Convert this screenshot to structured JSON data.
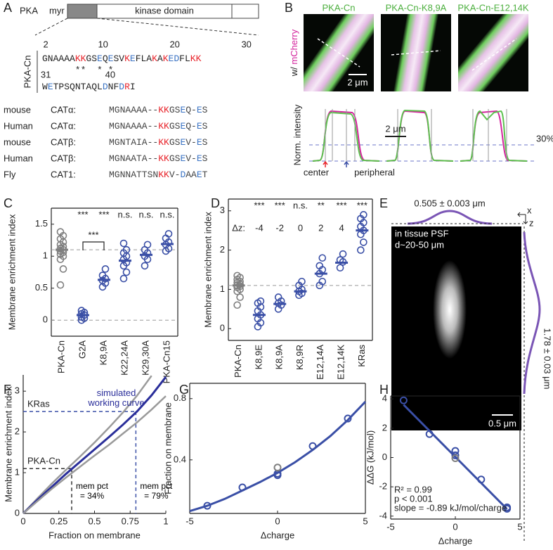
{
  "panel_a": {
    "label": "A",
    "protein": "PKA",
    "anchor": "myr",
    "domain": "kinase domain",
    "construct": "PKA-Cn",
    "sequence": [
      {
        "ticks": [
          2,
          10,
          20,
          30
        ],
        "marks": "      **  * *",
        "segments": [
          {
            "text": "GNAAAA",
            "color": "#222"
          },
          {
            "text": "KK",
            "color": "#e8232a"
          },
          {
            "text": "GS",
            "color": "#222"
          },
          {
            "text": "E",
            "color": "#3c74c4"
          },
          {
            "text": "Q",
            "color": "#222"
          },
          {
            "text": "E",
            "color": "#3c74c4"
          },
          {
            "text": "SV",
            "color": "#222"
          },
          {
            "text": "K",
            "color": "#e8232a"
          },
          {
            "text": "E",
            "color": "#3c74c4"
          },
          {
            "text": "FLA",
            "color": "#222"
          },
          {
            "text": "K",
            "color": "#e8232a"
          },
          {
            "text": "A",
            "color": "#222"
          },
          {
            "text": "K",
            "color": "#e8232a"
          },
          {
            "text": "ED",
            "color": "#3c74c4"
          },
          {
            "text": "FL",
            "color": "#222"
          },
          {
            "text": "KK",
            "color": "#e8232a"
          }
        ]
      },
      {
        "ticks": [
          31,
          40
        ],
        "segments": [
          {
            "text": "W",
            "color": "#222"
          },
          {
            "text": "E",
            "color": "#3c74c4"
          },
          {
            "text": "TPSQNTAQL",
            "color": "#222"
          },
          {
            "text": "D",
            "color": "#3c74c4"
          },
          {
            "text": "NF",
            "color": "#222"
          },
          {
            "text": "D",
            "color": "#3c74c4"
          },
          {
            "text": "R",
            "color": "#e8232a"
          },
          {
            "text": "I",
            "color": "#222"
          }
        ]
      }
    ],
    "alignment": [
      {
        "species": "mouse",
        "protein": "CATα:",
        "segments": [
          {
            "text": "MGNAAAA--",
            "color": "#444"
          },
          {
            "text": "KK",
            "color": "#e8232a"
          },
          {
            "text": "GS",
            "color": "#444"
          },
          {
            "text": "E",
            "color": "#3c74c4"
          },
          {
            "text": "Q-",
            "color": "#444"
          },
          {
            "text": "E",
            "color": "#3c74c4"
          },
          {
            "text": "S",
            "color": "#444"
          }
        ]
      },
      {
        "species": "Human",
        "protein": "CATα:",
        "segments": [
          {
            "text": "MGNAAAA--",
            "color": "#444"
          },
          {
            "text": "KK",
            "color": "#e8232a"
          },
          {
            "text": "GS",
            "color": "#444"
          },
          {
            "text": "E",
            "color": "#3c74c4"
          },
          {
            "text": "Q-",
            "color": "#444"
          },
          {
            "text": "E",
            "color": "#3c74c4"
          },
          {
            "text": "S",
            "color": "#444"
          }
        ]
      },
      {
        "species": "mouse",
        "protein": "CATβ:",
        "segments": [
          {
            "text": "MGNTAIA--",
            "color": "#444"
          },
          {
            "text": "KK",
            "color": "#e8232a"
          },
          {
            "text": "GS",
            "color": "#444"
          },
          {
            "text": "E",
            "color": "#3c74c4"
          },
          {
            "text": "V-",
            "color": "#444"
          },
          {
            "text": "E",
            "color": "#3c74c4"
          },
          {
            "text": "S",
            "color": "#444"
          }
        ]
      },
      {
        "species": "Human",
        "protein": "CATβ:",
        "segments": [
          {
            "text": "MGNAATA--",
            "color": "#444"
          },
          {
            "text": "KK",
            "color": "#e8232a"
          },
          {
            "text": "GS",
            "color": "#444"
          },
          {
            "text": "E",
            "color": "#3c74c4"
          },
          {
            "text": "V-",
            "color": "#444"
          },
          {
            "text": "E",
            "color": "#3c74c4"
          },
          {
            "text": "S",
            "color": "#444"
          }
        ]
      },
      {
        "species": "Fly",
        "protein": "CAT1:",
        "segments": [
          {
            "text": "MGNNATTSN",
            "color": "#444"
          },
          {
            "text": "KK",
            "color": "#e8232a"
          },
          {
            "text": "V-",
            "color": "#444"
          },
          {
            "text": "D",
            "color": "#3c74c4"
          },
          {
            "text": "AA",
            "color": "#444"
          },
          {
            "text": "E",
            "color": "#3c74c4"
          },
          {
            "text": "T",
            "color": "#444"
          }
        ]
      }
    ]
  },
  "panel_b": {
    "label": "B",
    "images": [
      "PKA-Cn",
      "PKA-Cn-K8,9A",
      "PKA-Cn-E12,14K"
    ],
    "channel_prefix": "w/",
    "channel": "mCherry",
    "scale": "2 μm",
    "profile_ylabel": "Norm. intensity",
    "profile_scale": "2 μm",
    "threshold": "30%",
    "center": "center",
    "peripheral": "peripheral"
  },
  "panel_e": {
    "label": "E",
    "fwhm_x": "0.505 ± 0.003 μm",
    "fwhm_z": "1.78 ± 0.03 μm",
    "title": "in tissue PSF",
    "depth": "d~20-50 μm",
    "scale": "0.5 μm",
    "x_axis": "x",
    "z_axis": "z"
  },
  "chart_data": [
    {
      "label": "C",
      "type": "strip",
      "ylabel": "Membrane enrichment index",
      "categories": [
        "PKA-Cn",
        "G2A",
        "K8,9A",
        "K22,24A",
        "K29,30A",
        "PKA-Cn15"
      ],
      "points": [
        [
          0.55,
          0.8,
          0.95,
          1.0,
          1.03,
          1.06,
          1.08,
          1.1,
          1.12,
          1.15,
          1.18,
          1.22,
          1.27,
          1.32,
          1.38
        ],
        [
          0.0,
          0.03,
          0.05,
          0.08,
          0.1,
          0.12,
          0.15
        ],
        [
          0.52,
          0.58,
          0.62,
          0.65,
          0.7,
          0.8
        ],
        [
          0.65,
          0.75,
          0.85,
          0.9,
          0.95,
          1.0,
          1.05,
          1.1,
          1.2
        ],
        [
          0.85,
          0.95,
          1.0,
          1.05,
          1.1,
          1.18
        ],
        [
          1.08,
          1.12,
          1.18,
          1.22,
          1.28,
          1.35
        ]
      ],
      "means": [
        1.1,
        0.08,
        0.63,
        0.93,
        1.02,
        1.19
      ],
      "colors": [
        "#7f7f7f",
        "#3a4fa6",
        "#3a4fa6",
        "#3a4fa6",
        "#3a4fa6",
        "#3a4fa6"
      ],
      "significance": [
        null,
        "***",
        "***",
        "n.s.",
        "n.s.",
        "n.s."
      ],
      "bracket_label": "***",
      "hlines": [
        0,
        1.1
      ],
      "ylim": [
        -0.25,
        1.75
      ],
      "yticks": [
        0,
        0.5,
        1,
        1.5
      ]
    },
    {
      "label": "D",
      "type": "strip",
      "ylabel": "Membrane enrichment index",
      "categories": [
        "PKA-Cn",
        "K8,9E",
        "K8,9A",
        "K8,9R",
        "E12,14A",
        "E12,14K",
        "KRas"
      ],
      "points": [
        [
          0.6,
          0.8,
          0.95,
          1.0,
          1.05,
          1.08,
          1.1,
          1.13,
          1.17,
          1.2,
          1.25,
          1.3,
          1.35
        ],
        [
          0.05,
          0.15,
          0.25,
          0.35,
          0.45,
          0.55,
          0.65,
          0.7
        ],
        [
          0.5,
          0.6,
          0.65,
          0.7,
          0.8
        ],
        [
          0.85,
          0.9,
          0.95,
          1.0,
          1.1,
          1.2
        ],
        [
          1.1,
          1.2,
          1.4,
          1.5,
          1.6,
          1.8
        ],
        [
          1.55,
          1.7,
          1.75,
          1.9
        ],
        [
          2.0,
          2.2,
          2.4,
          2.5,
          2.6,
          2.7,
          2.8,
          2.9
        ]
      ],
      "means": [
        1.1,
        0.35,
        0.63,
        0.95,
        1.4,
        1.68,
        2.5
      ],
      "colors": [
        "#7f7f7f",
        "#3a4fa6",
        "#3a4fa6",
        "#3a4fa6",
        "#3a4fa6",
        "#3a4fa6",
        "#3a4fa6"
      ],
      "significance": [
        null,
        "***",
        "***",
        "n.s.",
        "**",
        "***",
        "***"
      ],
      "dz_label": "Δz:",
      "dz": [
        null,
        -4,
        -2,
        0,
        2,
        4,
        null
      ],
      "hlines": [
        1.1
      ],
      "ylim": [
        -0.3,
        3.3
      ],
      "yticks": [
        0,
        1,
        2,
        3
      ]
    },
    {
      "label": "F",
      "type": "line",
      "xlabel": "Fraction on membrane",
      "ylabel": "Membrane enrichment index",
      "xlim": [
        0,
        1
      ],
      "ylim": [
        0,
        3.4
      ],
      "xticks": [
        0,
        0.25,
        0.5,
        0.75,
        1
      ],
      "yticks": [
        0,
        1,
        2,
        3
      ],
      "series": [
        {
          "color": "#9a9a9a",
          "x": [
            0,
            0.1,
            0.2,
            0.3,
            0.4,
            0.5,
            0.6,
            0.7,
            0.8,
            0.9
          ],
          "values": [
            0,
            0.37,
            0.73,
            1.07,
            1.4,
            1.74,
            2.1,
            2.48,
            2.9,
            3.38
          ]
        },
        {
          "name": "simulated working curve",
          "color": "#2a2e9a",
          "x": [
            0,
            0.1,
            0.2,
            0.3,
            0.4,
            0.5,
            0.6,
            0.7,
            0.8,
            0.9,
            1
          ],
          "values": [
            0,
            0.33,
            0.65,
            0.97,
            1.27,
            1.57,
            1.87,
            2.18,
            2.51,
            2.9,
            3.35
          ]
        },
        {
          "color": "#9a9a9a",
          "x": [
            0,
            0.1,
            0.2,
            0.3,
            0.4,
            0.5,
            0.6,
            0.7,
            0.8,
            0.9,
            1
          ],
          "values": [
            0,
            0.3,
            0.6,
            0.88,
            1.15,
            1.42,
            1.68,
            1.96,
            2.24,
            2.55,
            2.88
          ]
        }
      ],
      "ref_lines": [
        {
          "label": "PKA-Cn",
          "note": "mem pct = 34%",
          "x": 0.34,
          "y": 1.1,
          "color": "#333333"
        },
        {
          "label": "KRas",
          "note": "mem pct = 79%",
          "x": 0.79,
          "y": 2.5,
          "color": "#3a4fa6"
        }
      ]
    },
    {
      "label": "G",
      "type": "scatter",
      "xlabel": "Δcharge",
      "ylabel": "Fraction on membrane",
      "xlim": [
        -5,
        5
      ],
      "ylim": [
        0.05,
        0.9
      ],
      "xticks": [
        -5,
        0,
        5
      ],
      "yticks": [
        0.4,
        0.8
      ],
      "series": [
        {
          "style": "line",
          "color": "#3a4fa6",
          "x": [
            -5,
            -4,
            -3,
            -2,
            -1,
            0,
            1,
            2,
            3,
            4,
            5
          ],
          "values": [
            0.065,
            0.1,
            0.145,
            0.2,
            0.255,
            0.315,
            0.385,
            0.465,
            0.555,
            0.66,
            0.78
          ]
        },
        {
          "style": "marker",
          "color": "#3a4fa6",
          "x": [
            -4,
            -2,
            0,
            0,
            2,
            4
          ],
          "values": [
            0.1,
            0.22,
            0.31,
            0.3,
            0.49,
            0.67
          ]
        },
        {
          "style": "marker",
          "color": "#7f7f7f",
          "x": [
            0
          ],
          "values": [
            0.35
          ]
        }
      ]
    },
    {
      "label": "H",
      "type": "scatter",
      "xlabel": "Δcharge",
      "ylabel": "ΔΔG (kJ/mol)",
      "xlim": [
        -5,
        5
      ],
      "ylim": [
        -4.2,
        4.2
      ],
      "xticks": [
        -5,
        0,
        5
      ],
      "yticks": [
        -4,
        -2,
        0,
        2,
        4
      ],
      "annotations": [
        "R² = 0.99",
        "p < 0.001",
        "slope = -0.89 kJ/mol/charge"
      ],
      "series": [
        {
          "style": "line",
          "color": "#3a4fa6",
          "x": [
            -4,
            4
          ],
          "values": [
            3.6,
            -3.52
          ]
        },
        {
          "style": "marker",
          "color": "#3a4fa6",
          "x": [
            -4,
            -2,
            0,
            0,
            2,
            4,
            4
          ],
          "values": [
            3.9,
            1.6,
            0.45,
            0.15,
            -1.5,
            -3.4,
            -3.5
          ]
        },
        {
          "style": "marker",
          "color": "#7f7f7f",
          "x": [
            0
          ],
          "values": [
            -0.05
          ]
        }
      ]
    }
  ]
}
